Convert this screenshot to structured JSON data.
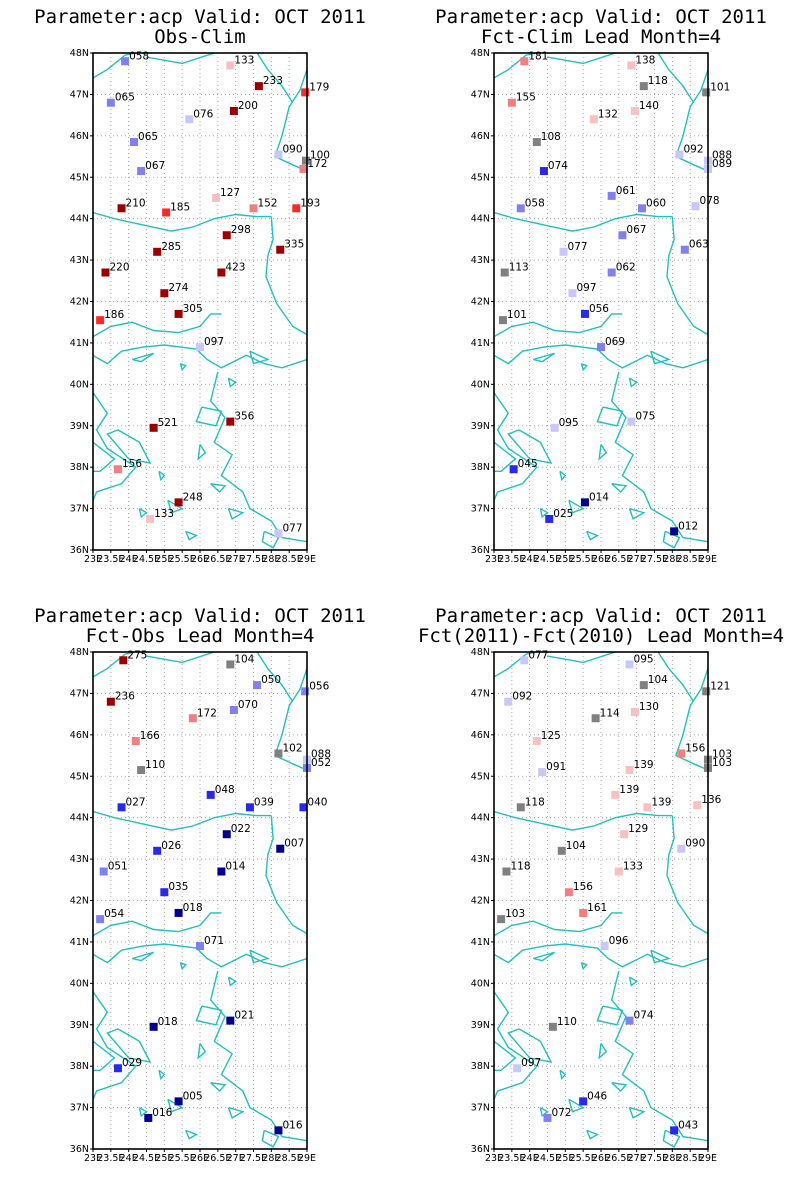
{
  "colors": {
    "dark_red": "#9b0000",
    "red": "#ff2828",
    "light_red": "#f08080",
    "pink": "#f8c0c0",
    "gray": "#808080",
    "lavender": "#c8c8f8",
    "light_blue": "#8080f0",
    "blue": "#2828f0",
    "dark_blue": "#00008c",
    "coast": "#22c0c0"
  },
  "axes": {
    "lat_labels": [
      "36N",
      "37N",
      "38N",
      "39N",
      "40N",
      "41N",
      "42N",
      "43N",
      "44N",
      "45N",
      "46N",
      "47N",
      "48N"
    ],
    "lon_labels": [
      "23E",
      "23.5E",
      "24E",
      "24.5E",
      "25E",
      "25.5E",
      "26E",
      "26.5E",
      "27E",
      "27.5E",
      "28E",
      "28.5E",
      "29E"
    ]
  },
  "panels": [
    {
      "title_line1": "Parameter:acp Valid: OCT 2011",
      "title_line2": "Obs-Clim",
      "stations": [
        {
          "lon": 23.9,
          "lat": 47.8,
          "v": "058",
          "c": "light_blue"
        },
        {
          "lon": 26.85,
          "lat": 47.7,
          "v": "133",
          "c": "pink"
        },
        {
          "lon": 27.65,
          "lat": 47.2,
          "v": "233",
          "c": "dark_red"
        },
        {
          "lon": 28.95,
          "lat": 47.05,
          "v": "179",
          "c": "red"
        },
        {
          "lon": 23.5,
          "lat": 46.8,
          "v": "065",
          "c": "light_blue"
        },
        {
          "lon": 26.95,
          "lat": 46.6,
          "v": "200",
          "c": "dark_red"
        },
        {
          "lon": 25.7,
          "lat": 46.4,
          "v": "076",
          "c": "lavender"
        },
        {
          "lon": 24.15,
          "lat": 45.85,
          "v": "065",
          "c": "light_blue"
        },
        {
          "lon": 28.2,
          "lat": 45.55,
          "v": "090",
          "c": "lavender"
        },
        {
          "lon": 28.97,
          "lat": 45.4,
          "v": "100",
          "c": "gray"
        },
        {
          "lon": 28.9,
          "lat": 45.2,
          "v": "172",
          "c": "light_red"
        },
        {
          "lon": 24.35,
          "lat": 45.15,
          "v": "067",
          "c": "light_blue"
        },
        {
          "lon": 26.45,
          "lat": 44.5,
          "v": "127",
          "c": "pink"
        },
        {
          "lon": 23.8,
          "lat": 44.25,
          "v": "210",
          "c": "dark_red"
        },
        {
          "lon": 25.05,
          "lat": 44.15,
          "v": "185",
          "c": "red"
        },
        {
          "lon": 27.5,
          "lat": 44.25,
          "v": "152",
          "c": "light_red"
        },
        {
          "lon": 28.7,
          "lat": 44.25,
          "v": "193",
          "c": "red"
        },
        {
          "lon": 26.75,
          "lat": 43.6,
          "v": "298",
          "c": "dark_red"
        },
        {
          "lon": 28.25,
          "lat": 43.25,
          "v": "335",
          "c": "dark_red"
        },
        {
          "lon": 24.8,
          "lat": 43.2,
          "v": "285",
          "c": "dark_red"
        },
        {
          "lon": 23.35,
          "lat": 42.7,
          "v": "220",
          "c": "dark_red"
        },
        {
          "lon": 26.6,
          "lat": 42.7,
          "v": "423",
          "c": "dark_red"
        },
        {
          "lon": 25.0,
          "lat": 42.2,
          "v": "274",
          "c": "dark_red"
        },
        {
          "lon": 25.4,
          "lat": 41.7,
          "v": "305",
          "c": "dark_red"
        },
        {
          "lon": 23.2,
          "lat": 41.55,
          "v": "186",
          "c": "red"
        },
        {
          "lon": 26.0,
          "lat": 40.9,
          "v": "097",
          "c": "lavender"
        },
        {
          "lon": 26.85,
          "lat": 39.1,
          "v": "356",
          "c": "dark_red"
        },
        {
          "lon": 24.7,
          "lat": 38.95,
          "v": "521",
          "c": "dark_red"
        },
        {
          "lon": 23.7,
          "lat": 37.95,
          "v": "156",
          "c": "light_red"
        },
        {
          "lon": 25.4,
          "lat": 37.15,
          "v": "248",
          "c": "dark_red"
        },
        {
          "lon": 24.6,
          "lat": 36.75,
          "v": "133",
          "c": "pink"
        },
        {
          "lon": 28.2,
          "lat": 36.4,
          "v": "077",
          "c": "lavender"
        }
      ]
    },
    {
      "title_line1": "Parameter:acp Valid: OCT 2011",
      "title_line2": "Fct-Clim Lead Month=4",
      "stations": [
        {
          "lon": 23.85,
          "lat": 47.8,
          "v": "181",
          "c": "light_red"
        },
        {
          "lon": 26.85,
          "lat": 47.7,
          "v": "138",
          "c": "pink"
        },
        {
          "lon": 27.2,
          "lat": 47.2,
          "v": "118",
          "c": "gray"
        },
        {
          "lon": 28.95,
          "lat": 47.05,
          "v": "101",
          "c": "gray"
        },
        {
          "lon": 23.5,
          "lat": 46.8,
          "v": "155",
          "c": "light_red"
        },
        {
          "lon": 26.95,
          "lat": 46.6,
          "v": "140",
          "c": "pink"
        },
        {
          "lon": 25.8,
          "lat": 46.4,
          "v": "132",
          "c": "pink"
        },
        {
          "lon": 24.2,
          "lat": 45.85,
          "v": "108",
          "c": "gray"
        },
        {
          "lon": 28.2,
          "lat": 45.55,
          "v": "092",
          "c": "lavender"
        },
        {
          "lon": 29.0,
          "lat": 45.4,
          "v": "088",
          "c": "lavender"
        },
        {
          "lon": 29.0,
          "lat": 45.2,
          "v": "089",
          "c": "lavender"
        },
        {
          "lon": 24.4,
          "lat": 45.15,
          "v": "074",
          "c": "blue"
        },
        {
          "lon": 26.3,
          "lat": 44.55,
          "v": "061",
          "c": "light_blue"
        },
        {
          "lon": 23.75,
          "lat": 44.25,
          "v": "058",
          "c": "light_blue"
        },
        {
          "lon": 27.15,
          "lat": 44.25,
          "v": "060",
          "c": "light_blue"
        },
        {
          "lon": 28.65,
          "lat": 44.3,
          "v": "078",
          "c": "lavender"
        },
        {
          "lon": 26.6,
          "lat": 43.6,
          "v": "067",
          "c": "light_blue"
        },
        {
          "lon": 28.35,
          "lat": 43.25,
          "v": "063",
          "c": "light_blue"
        },
        {
          "lon": 24.95,
          "lat": 43.2,
          "v": "077",
          "c": "lavender"
        },
        {
          "lon": 23.3,
          "lat": 42.7,
          "v": "113",
          "c": "gray"
        },
        {
          "lon": 26.3,
          "lat": 42.7,
          "v": "062",
          "c": "light_blue"
        },
        {
          "lon": 25.2,
          "lat": 42.2,
          "v": "097",
          "c": "lavender"
        },
        {
          "lon": 25.55,
          "lat": 41.7,
          "v": "056",
          "c": "blue"
        },
        {
          "lon": 23.25,
          "lat": 41.55,
          "v": "101",
          "c": "gray"
        },
        {
          "lon": 26.0,
          "lat": 40.9,
          "v": "069",
          "c": "light_blue"
        },
        {
          "lon": 26.85,
          "lat": 39.1,
          "v": "075",
          "c": "lavender"
        },
        {
          "lon": 24.7,
          "lat": 38.95,
          "v": "095",
          "c": "lavender"
        },
        {
          "lon": 23.55,
          "lat": 37.95,
          "v": "045",
          "c": "blue"
        },
        {
          "lon": 25.55,
          "lat": 37.15,
          "v": "014",
          "c": "dark_blue"
        },
        {
          "lon": 24.55,
          "lat": 36.75,
          "v": "025",
          "c": "blue"
        },
        {
          "lon": 28.05,
          "lat": 36.45,
          "v": "012",
          "c": "dark_blue"
        }
      ]
    },
    {
      "title_line1": "Parameter:acp Valid: OCT 2011",
      "title_line2": "Fct-Obs Lead Month=4",
      "stations": [
        {
          "lon": 23.85,
          "lat": 47.8,
          "v": "275",
          "c": "dark_red"
        },
        {
          "lon": 26.85,
          "lat": 47.7,
          "v": "104",
          "c": "gray"
        },
        {
          "lon": 27.6,
          "lat": 47.2,
          "v": "050",
          "c": "light_blue"
        },
        {
          "lon": 28.95,
          "lat": 47.05,
          "v": "056",
          "c": "light_blue"
        },
        {
          "lon": 23.5,
          "lat": 46.8,
          "v": "236",
          "c": "dark_red"
        },
        {
          "lon": 26.95,
          "lat": 46.6,
          "v": "070",
          "c": "light_blue"
        },
        {
          "lon": 25.8,
          "lat": 46.4,
          "v": "172",
          "c": "light_red"
        },
        {
          "lon": 24.2,
          "lat": 45.85,
          "v": "166",
          "c": "light_red"
        },
        {
          "lon": 28.2,
          "lat": 45.55,
          "v": "102",
          "c": "gray"
        },
        {
          "lon": 29.0,
          "lat": 45.4,
          "v": "088",
          "c": "lavender"
        },
        {
          "lon": 29.0,
          "lat": 45.2,
          "v": "052",
          "c": "light_blue"
        },
        {
          "lon": 24.35,
          "lat": 45.15,
          "v": "110",
          "c": "gray"
        },
        {
          "lon": 26.3,
          "lat": 44.55,
          "v": "048",
          "c": "blue"
        },
        {
          "lon": 23.8,
          "lat": 44.25,
          "v": "027",
          "c": "blue"
        },
        {
          "lon": 27.4,
          "lat": 44.25,
          "v": "039",
          "c": "blue"
        },
        {
          "lon": 28.9,
          "lat": 44.25,
          "v": "040",
          "c": "blue"
        },
        {
          "lon": 26.75,
          "lat": 43.6,
          "v": "022",
          "c": "dark_blue"
        },
        {
          "lon": 28.25,
          "lat": 43.25,
          "v": "007",
          "c": "dark_blue"
        },
        {
          "lon": 24.8,
          "lat": 43.2,
          "v": "026",
          "c": "blue"
        },
        {
          "lon": 23.3,
          "lat": 42.7,
          "v": "051",
          "c": "light_blue"
        },
        {
          "lon": 26.6,
          "lat": 42.7,
          "v": "014",
          "c": "dark_blue"
        },
        {
          "lon": 25.0,
          "lat": 42.2,
          "v": "035",
          "c": "blue"
        },
        {
          "lon": 25.4,
          "lat": 41.7,
          "v": "018",
          "c": "dark_blue"
        },
        {
          "lon": 23.2,
          "lat": 41.55,
          "v": "054",
          "c": "light_blue"
        },
        {
          "lon": 26.0,
          "lat": 40.9,
          "v": "071",
          "c": "light_blue"
        },
        {
          "lon": 26.85,
          "lat": 39.1,
          "v": "021",
          "c": "dark_blue"
        },
        {
          "lon": 24.7,
          "lat": 38.95,
          "v": "018",
          "c": "dark_blue"
        },
        {
          "lon": 23.7,
          "lat": 37.95,
          "v": "029",
          "c": "blue"
        },
        {
          "lon": 25.4,
          "lat": 37.15,
          "v": "005",
          "c": "dark_blue"
        },
        {
          "lon": 24.55,
          "lat": 36.75,
          "v": "016",
          "c": "dark_blue"
        },
        {
          "lon": 28.2,
          "lat": 36.45,
          "v": "016",
          "c": "dark_blue"
        }
      ]
    },
    {
      "title_line1": "Parameter:acp Valid: OCT 2011",
      "title_line2": "Fct(2011)-Fct(2010) Lead Month=4",
      "stations": [
        {
          "lon": 23.85,
          "lat": 47.8,
          "v": "077",
          "c": "lavender"
        },
        {
          "lon": 26.8,
          "lat": 47.7,
          "v": "095",
          "c": "lavender"
        },
        {
          "lon": 27.2,
          "lat": 47.2,
          "v": "104",
          "c": "gray"
        },
        {
          "lon": 28.95,
          "lat": 47.05,
          "v": "121",
          "c": "gray"
        },
        {
          "lon": 23.4,
          "lat": 46.8,
          "v": "092",
          "c": "lavender"
        },
        {
          "lon": 26.95,
          "lat": 46.55,
          "v": "130",
          "c": "pink"
        },
        {
          "lon": 25.85,
          "lat": 46.4,
          "v": "114",
          "c": "gray"
        },
        {
          "lon": 24.2,
          "lat": 45.85,
          "v": "125",
          "c": "pink"
        },
        {
          "lon": 28.25,
          "lat": 45.55,
          "v": "156",
          "c": "light_red"
        },
        {
          "lon": 29.0,
          "lat": 45.4,
          "v": "103",
          "c": "gray"
        },
        {
          "lon": 29.0,
          "lat": 45.2,
          "v": "103",
          "c": "gray"
        },
        {
          "lon": 24.35,
          "lat": 45.1,
          "v": "091",
          "c": "lavender"
        },
        {
          "lon": 26.8,
          "lat": 45.15,
          "v": "139",
          "c": "pink"
        },
        {
          "lon": 26.4,
          "lat": 44.55,
          "v": "139",
          "c": "pink"
        },
        {
          "lon": 27.3,
          "lat": 44.25,
          "v": "139",
          "c": "pink"
        },
        {
          "lon": 28.7,
          "lat": 44.3,
          "v": "136",
          "c": "pink"
        },
        {
          "lon": 23.75,
          "lat": 44.25,
          "v": "118",
          "c": "gray"
        },
        {
          "lon": 26.65,
          "lat": 43.6,
          "v": "129",
          "c": "pink"
        },
        {
          "lon": 28.25,
          "lat": 43.25,
          "v": "090",
          "c": "lavender"
        },
        {
          "lon": 24.9,
          "lat": 43.2,
          "v": "104",
          "c": "gray"
        },
        {
          "lon": 23.35,
          "lat": 42.7,
          "v": "118",
          "c": "gray"
        },
        {
          "lon": 26.5,
          "lat": 42.7,
          "v": "133",
          "c": "pink"
        },
        {
          "lon": 25.1,
          "lat": 42.2,
          "v": "156",
          "c": "light_red"
        },
        {
          "lon": 25.5,
          "lat": 41.7,
          "v": "161",
          "c": "light_red"
        },
        {
          "lon": 23.2,
          "lat": 41.55,
          "v": "103",
          "c": "gray"
        },
        {
          "lon": 26.1,
          "lat": 40.9,
          "v": "096",
          "c": "lavender"
        },
        {
          "lon": 26.8,
          "lat": 39.1,
          "v": "074",
          "c": "light_blue"
        },
        {
          "lon": 24.65,
          "lat": 38.95,
          "v": "110",
          "c": "gray"
        },
        {
          "lon": 23.65,
          "lat": 37.95,
          "v": "097",
          "c": "lavender"
        },
        {
          "lon": 25.5,
          "lat": 37.15,
          "v": "046",
          "c": "blue"
        },
        {
          "lon": 24.5,
          "lat": 36.75,
          "v": "072",
          "c": "light_blue"
        },
        {
          "lon": 28.05,
          "lat": 36.45,
          "v": "043",
          "c": "blue"
        }
      ]
    }
  ]
}
